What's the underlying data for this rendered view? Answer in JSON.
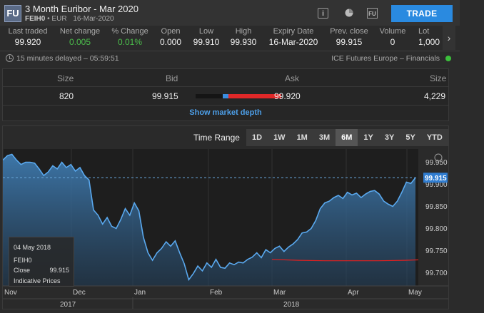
{
  "header": {
    "logo": "FU",
    "title": "3 Month Euribor - Mar 2020",
    "code": "FEIH0",
    "currency": "EUR",
    "date": "16-Mar-2020",
    "trade_label": "TRADE",
    "info_icon_glyph": "i",
    "fu_icon_text": "FU"
  },
  "stats": [
    {
      "label": "Last traded",
      "value": "99.920"
    },
    {
      "label": "Net change",
      "value": "0.005"
    },
    {
      "label": "% Change",
      "value": "0.01%"
    },
    {
      "label": "Open",
      "value": "0.000"
    },
    {
      "label": "Low",
      "value": "99.910"
    },
    {
      "label": "High",
      "value": "99.930"
    },
    {
      "label": "Expiry Date",
      "value": "16-Mar-2020"
    },
    {
      "label": "Prev. close",
      "value": "99.915"
    },
    {
      "label": "Volume",
      "value": "0"
    },
    {
      "label": "Lot",
      "value": "1,000"
    }
  ],
  "delay_text": "15 minutes delayed – 05:59:51",
  "exchange": "ICE Futures Europe – Financials",
  "depth": {
    "headers": {
      "size_left": "Size",
      "bid": "Bid",
      "ask": "Ask",
      "size_right": "Size"
    },
    "row": {
      "size_left": "820",
      "bid": "99.915",
      "ask": "99.920",
      "size_right": "4,229"
    },
    "link": "Show market depth"
  },
  "chart_panel": {
    "range_label": "Time Range",
    "ranges": [
      "1D",
      "1W",
      "1M",
      "3M",
      "6M",
      "1Y",
      "3Y",
      "5Y",
      "YTD"
    ],
    "active_range": "6M"
  },
  "tooltip": {
    "date": "04 May 2018",
    "symbol": "FEIH0",
    "close_label": "Close",
    "close_value": "99.915",
    "note": "Indicative Prices"
  },
  "chart_data": {
    "type": "area",
    "y_ticks": [
      "99.950",
      "99.900",
      "99.850",
      "99.800",
      "99.750",
      "99.700"
    ],
    "y_values": [
      99.95,
      99.9,
      99.85,
      99.8,
      99.75,
      99.7
    ],
    "ylim": [
      99.67,
      99.98
    ],
    "x_labels": [
      "Nov",
      "Dec",
      "Jan",
      "Feb",
      "Mar",
      "Apr",
      "May"
    ],
    "years": [
      "2017",
      "2018"
    ],
    "last_value": "99.915",
    "series": [
      {
        "values": [
          99.955,
          99.965,
          99.968,
          99.955,
          99.945,
          99.95,
          99.95,
          99.948,
          99.935,
          99.92,
          99.928,
          99.942,
          99.935,
          99.95,
          99.938,
          99.945,
          99.93,
          99.938,
          99.92,
          99.91,
          99.842,
          99.83,
          99.81,
          99.825,
          99.805,
          99.8,
          99.82,
          99.845,
          99.83,
          99.858,
          99.84,
          99.78,
          99.745,
          99.728,
          99.745,
          99.755,
          99.77,
          99.76,
          99.772,
          99.745,
          99.72,
          99.684,
          99.698,
          99.715,
          99.704,
          99.722,
          99.712,
          99.73,
          99.712,
          99.71,
          99.722,
          99.718,
          99.724,
          99.722,
          99.73,
          99.735,
          99.745,
          99.734,
          99.752,
          99.745,
          99.755,
          99.76,
          99.748,
          99.758,
          99.765,
          99.775,
          99.79,
          99.792,
          99.8,
          99.818,
          99.845,
          99.858,
          99.862,
          99.87,
          99.875,
          99.868,
          99.882,
          99.876,
          99.88,
          99.87,
          99.878,
          99.884,
          99.886,
          99.878,
          99.862,
          99.855,
          99.85,
          99.862,
          99.882,
          99.905,
          99.902,
          99.915
        ]
      }
    ],
    "red_line": [
      99.73,
      99.728,
      99.727,
      99.727,
      99.727,
      99.728,
      99.73,
      99.733,
      99.735
    ]
  }
}
